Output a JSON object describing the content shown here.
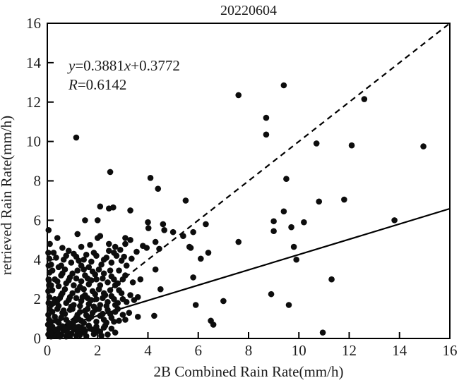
{
  "title": "20220604",
  "annotation": {
    "line1": [
      {
        "text": "y",
        "italic": true
      },
      {
        "text": "=0.3881",
        "italic": false
      },
      {
        "text": "x",
        "italic": true
      },
      {
        "text": "+0.3772",
        "italic": false
      }
    ],
    "line2": [
      {
        "text": "R",
        "italic": true
      },
      {
        "text": "=0.6142",
        "italic": false
      }
    ]
  },
  "colors": {
    "background": "#ffffff",
    "axis": "#000000",
    "marker": "#0d0d0d",
    "text": "#1c1c1c"
  },
  "chart_data": {
    "type": "scatter",
    "title": "20220604",
    "xlabel": "2B Combined Rain Rate(mm/h)",
    "ylabel": "retrieved Rain Rate(mm/h)",
    "xlim": [
      0,
      16
    ],
    "ylim": [
      0,
      16
    ],
    "x_ticks": [
      0,
      2,
      4,
      6,
      8,
      10,
      12,
      14,
      16
    ],
    "y_ticks": [
      0,
      2,
      4,
      6,
      8,
      10,
      12,
      14,
      16
    ],
    "grid": false,
    "legend": "none",
    "equation_text": "y=0.3881x+0.3772",
    "r_text": "R=0.6142",
    "fit_line": {
      "slope": 0.3881,
      "intercept": 0.3772,
      "style": "solid",
      "x_start": 0,
      "x_end": 16
    },
    "identity_line": {
      "slope": 1,
      "intercept": 0,
      "style": "dashed",
      "x_start": 0,
      "x_end": 16
    },
    "points": [
      [
        7.6,
        12.35
      ],
      [
        9.4,
        12.85
      ],
      [
        12.6,
        12.15
      ],
      [
        8.7,
        11.2
      ],
      [
        8.7,
        10.35
      ],
      [
        10.7,
        9.9
      ],
      [
        12.1,
        9.8
      ],
      [
        14.95,
        9.75
      ],
      [
        9.5,
        8.1
      ],
      [
        1.15,
        10.2
      ],
      [
        2.5,
        8.45
      ],
      [
        4.1,
        8.15
      ],
      [
        4.4,
        7.6
      ],
      [
        5.5,
        7.0
      ],
      [
        10.8,
        6.95
      ],
      [
        11.8,
        7.05
      ],
      [
        9.4,
        6.45
      ],
      [
        9.0,
        5.95
      ],
      [
        10.2,
        5.9
      ],
      [
        9.7,
        5.65
      ],
      [
        9.0,
        5.45
      ],
      [
        13.8,
        6.0
      ],
      [
        9.8,
        4.65
      ],
      [
        9.9,
        4.0
      ],
      [
        11.3,
        3.0
      ],
      [
        8.9,
        2.25
      ],
      [
        9.6,
        1.7
      ],
      [
        10.95,
        0.3
      ],
      [
        2.1,
        6.7
      ],
      [
        2.45,
        6.6
      ],
      [
        2.62,
        6.65
      ],
      [
        3.3,
        6.5
      ],
      [
        1.5,
        6.0
      ],
      [
        2.0,
        6.0
      ],
      [
        4.0,
        5.9
      ],
      [
        4.02,
        5.6
      ],
      [
        4.6,
        5.8
      ],
      [
        4.65,
        5.5
      ],
      [
        5.0,
        5.4
      ],
      [
        5.4,
        5.2
      ],
      [
        5.8,
        5.4
      ],
      [
        6.3,
        5.8
      ],
      [
        7.6,
        4.9
      ],
      [
        5.7,
        4.6
      ],
      [
        6.4,
        4.35
      ],
      [
        6.1,
        4.05
      ],
      [
        4.3,
        3.5
      ],
      [
        5.8,
        3.1
      ],
      [
        4.5,
        2.5
      ],
      [
        5.9,
        1.7
      ],
      [
        7.0,
        1.9
      ],
      [
        4.25,
        1.15
      ],
      [
        6.5,
        0.9
      ],
      [
        6.6,
        0.7
      ],
      [
        0.05,
        5.5
      ],
      [
        0.4,
        5.1
      ],
      [
        1.2,
        5.3
      ],
      [
        2.0,
        5.1
      ],
      [
        3.1,
        5.1
      ],
      [
        3.3,
        5.0
      ],
      [
        3.1,
        4.8
      ],
      [
        3.8,
        4.7
      ],
      [
        3.95,
        4.6
      ],
      [
        4.3,
        4.9
      ],
      [
        5.65,
        4.65
      ],
      [
        0.1,
        4.8
      ],
      [
        2.1,
        5.2
      ],
      [
        3.55,
        4.4
      ],
      [
        2.9,
        4.5
      ],
      [
        3.6,
        2.1
      ],
      [
        3.6,
        1.1
      ],
      [
        2.3,
        0.65
      ],
      [
        1.35,
        4.65
      ],
      [
        1.7,
        4.75
      ],
      [
        0.6,
        4.6
      ],
      [
        2.45,
        4.8
      ],
      [
        2.7,
        4.65
      ],
      [
        4.45,
        4.55
      ],
      [
        0.04,
        0.2
      ],
      [
        0.08,
        0.45
      ],
      [
        0.03,
        0.7
      ],
      [
        0.07,
        0.95
      ],
      [
        0.04,
        1.2
      ],
      [
        0.09,
        1.5
      ],
      [
        0.05,
        1.8
      ],
      [
        0.08,
        2.1
      ],
      [
        0.04,
        2.4
      ],
      [
        0.07,
        2.7
      ],
      [
        0.05,
        3.0
      ],
      [
        0.09,
        3.35
      ],
      [
        0.05,
        3.7
      ],
      [
        0.08,
        4.05
      ],
      [
        0.04,
        4.35
      ],
      [
        0.06,
        2.95
      ],
      [
        0.15,
        0.1
      ],
      [
        0.25,
        0.3
      ],
      [
        0.35,
        0.15
      ],
      [
        0.45,
        0.5
      ],
      [
        0.55,
        0.2
      ],
      [
        0.65,
        0.4
      ],
      [
        0.75,
        0.1
      ],
      [
        0.85,
        0.55
      ],
      [
        0.95,
        0.25
      ],
      [
        1.05,
        0.45
      ],
      [
        1.15,
        0.15
      ],
      [
        1.25,
        0.6
      ],
      [
        1.4,
        0.3
      ],
      [
        1.55,
        0.12
      ],
      [
        1.7,
        0.5
      ],
      [
        1.85,
        0.22
      ],
      [
        2.0,
        0.4
      ],
      [
        2.15,
        0.14
      ],
      [
        2.4,
        0.2
      ],
      [
        2.55,
        0.5
      ],
      [
        0.2,
        0.6
      ],
      [
        0.4,
        0.35
      ],
      [
        0.6,
        0.62
      ],
      [
        0.8,
        0.3
      ],
      [
        1.0,
        0.65
      ],
      [
        1.2,
        0.35
      ],
      [
        1.35,
        0.55
      ],
      [
        1.5,
        0.38
      ],
      [
        1.65,
        0.65
      ],
      [
        1.8,
        0.45
      ],
      [
        1.95,
        0.6
      ],
      [
        2.1,
        0.35
      ],
      [
        2.25,
        0.55
      ],
      [
        0.3,
        0.45
      ],
      [
        0.5,
        0.1
      ],
      [
        0.7,
        0.52
      ],
      [
        0.9,
        0.12
      ],
      [
        1.1,
        0.58
      ],
      [
        1.3,
        0.18
      ],
      [
        1.45,
        0.48
      ],
      [
        2.7,
        0.3
      ],
      [
        0.12,
        0.32
      ],
      [
        0.15,
        0.85
      ],
      [
        0.3,
        1.1
      ],
      [
        0.45,
        0.8
      ],
      [
        0.6,
        1.3
      ],
      [
        0.75,
        0.95
      ],
      [
        0.9,
        1.45
      ],
      [
        1.05,
        0.85
      ],
      [
        1.2,
        1.2
      ],
      [
        1.35,
        0.9
      ],
      [
        1.5,
        1.4
      ],
      [
        1.65,
        1.0
      ],
      [
        1.8,
        1.3
      ],
      [
        1.95,
        0.85
      ],
      [
        2.1,
        1.15
      ],
      [
        2.25,
        0.95
      ],
      [
        2.4,
        1.45
      ],
      [
        2.55,
        1.05
      ],
      [
        2.7,
        1.35
      ],
      [
        2.85,
        0.9
      ],
      [
        3.0,
        1.2
      ],
      [
        0.2,
        1.35
      ],
      [
        0.4,
        1.5
      ],
      [
        0.55,
        1.05
      ],
      [
        0.7,
        1.25
      ],
      [
        0.85,
        0.78
      ],
      [
        1.0,
        1.5
      ],
      [
        1.15,
        1.05
      ],
      [
        1.3,
        1.35
      ],
      [
        1.45,
        0.8
      ],
      [
        1.6,
        1.5
      ],
      [
        1.75,
        1.1
      ],
      [
        1.9,
        1.45
      ],
      [
        2.05,
        1.5
      ],
      [
        2.2,
        1.25
      ],
      [
        2.35,
        0.8
      ],
      [
        2.5,
        1.25
      ],
      [
        2.65,
        0.85
      ],
      [
        2.8,
        1.5
      ],
      [
        3.1,
        0.95
      ],
      [
        3.25,
        1.3
      ],
      [
        0.35,
        0.9
      ],
      [
        0.65,
        1.42
      ],
      [
        1.25,
        0.98
      ],
      [
        1.55,
        1.18
      ],
      [
        0.15,
        1.7
      ],
      [
        0.3,
        2.0
      ],
      [
        0.45,
        1.65
      ],
      [
        0.6,
        2.3
      ],
      [
        0.75,
        1.8
      ],
      [
        0.9,
        2.1
      ],
      [
        1.05,
        1.7
      ],
      [
        1.2,
        2.45
      ],
      [
        1.35,
        1.9
      ],
      [
        1.5,
        2.2
      ],
      [
        1.65,
        1.75
      ],
      [
        1.8,
        2.4
      ],
      [
        1.95,
        2.0
      ],
      [
        2.1,
        1.7
      ],
      [
        2.25,
        2.3
      ],
      [
        2.4,
        1.85
      ],
      [
        2.55,
        2.15
      ],
      [
        2.7,
        1.7
      ],
      [
        2.85,
        2.45
      ],
      [
        3.0,
        2.0
      ],
      [
        0.2,
        2.45
      ],
      [
        0.4,
        1.9
      ],
      [
        0.55,
        2.2
      ],
      [
        0.7,
        2.5
      ],
      [
        0.85,
        1.95
      ],
      [
        1.0,
        2.3
      ],
      [
        1.15,
        2.05
      ],
      [
        1.3,
        1.65
      ],
      [
        1.45,
        2.5
      ],
      [
        1.6,
        2.05
      ],
      [
        1.75,
        1.95
      ],
      [
        1.9,
        2.25
      ],
      [
        2.05,
        2.5
      ],
      [
        2.2,
        2.05
      ],
      [
        2.35,
        1.65
      ],
      [
        2.5,
        2.45
      ],
      [
        2.65,
        2.0
      ],
      [
        2.8,
        1.8
      ],
      [
        2.95,
        2.3
      ],
      [
        3.15,
        1.85
      ],
      [
        3.3,
        2.2
      ],
      [
        0.25,
        1.8
      ],
      [
        0.5,
        2.05
      ],
      [
        0.95,
        1.62
      ],
      [
        1.4,
        2.1
      ],
      [
        1.85,
        1.62
      ],
      [
        2.3,
        2.2
      ],
      [
        3.45,
        1.95
      ],
      [
        0.15,
        2.7
      ],
      [
        0.3,
        3.0
      ],
      [
        0.45,
        2.65
      ],
      [
        0.6,
        3.3
      ],
      [
        0.75,
        2.8
      ],
      [
        0.9,
        3.1
      ],
      [
        1.05,
        2.7
      ],
      [
        1.2,
        3.45
      ],
      [
        1.35,
        2.9
      ],
      [
        1.5,
        3.2
      ],
      [
        1.65,
        2.75
      ],
      [
        1.8,
        3.4
      ],
      [
        1.95,
        3.0
      ],
      [
        2.1,
        2.7
      ],
      [
        2.25,
        3.3
      ],
      [
        2.4,
        2.85
      ],
      [
        2.55,
        3.15
      ],
      [
        2.7,
        2.7
      ],
      [
        2.85,
        3.45
      ],
      [
        3.0,
        3.0
      ],
      [
        0.2,
        3.45
      ],
      [
        0.4,
        2.9
      ],
      [
        0.55,
        3.2
      ],
      [
        0.7,
        3.5
      ],
      [
        0.85,
        2.95
      ],
      [
        1.0,
        3.3
      ],
      [
        1.15,
        3.05
      ],
      [
        1.3,
        2.62
      ],
      [
        1.45,
        3.5
      ],
      [
        1.6,
        3.05
      ],
      [
        1.75,
        2.95
      ],
      [
        1.9,
        3.25
      ],
      [
        2.05,
        3.5
      ],
      [
        2.2,
        3.05
      ],
      [
        2.5,
        3.45
      ],
      [
        2.65,
        3.0
      ],
      [
        2.8,
        2.8
      ],
      [
        3.1,
        3.2
      ],
      [
        3.4,
        2.85
      ],
      [
        3.7,
        3.0
      ],
      [
        0.15,
        3.75
      ],
      [
        0.35,
        4.1
      ],
      [
        0.55,
        3.7
      ],
      [
        0.75,
        4.2
      ],
      [
        0.95,
        3.85
      ],
      [
        1.15,
        4.15
      ],
      [
        1.35,
        3.7
      ],
      [
        1.55,
        4.25
      ],
      [
        1.75,
        3.9
      ],
      [
        1.95,
        4.2
      ],
      [
        2.15,
        3.75
      ],
      [
        2.35,
        4.1
      ],
      [
        2.55,
        3.85
      ],
      [
        2.75,
        4.2
      ],
      [
        2.95,
        3.95
      ],
      [
        3.15,
        3.7
      ],
      [
        3.35,
        4.05
      ],
      [
        0.25,
        4.35
      ],
      [
        0.65,
        4.0
      ],
      [
        1.05,
        4.3
      ],
      [
        1.45,
        4.0
      ],
      [
        1.85,
        4.35
      ],
      [
        2.25,
        4.0
      ],
      [
        2.65,
        4.35
      ],
      [
        3.05,
        4.15
      ],
      [
        0.45,
        3.62
      ],
      [
        0.85,
        4.45
      ],
      [
        1.65,
        3.62
      ],
      [
        2.45,
        4.45
      ],
      [
        1.25,
        3.95
      ]
    ]
  }
}
